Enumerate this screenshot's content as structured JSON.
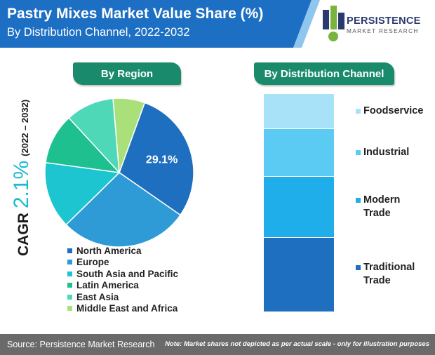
{
  "header": {
    "title": "Pastry Mixes Market Value Share (%)",
    "subtitle": "By Distribution Channel, 2022-2032"
  },
  "logo": {
    "name": "PERSISTENCE",
    "tagline": "MARKET RESEARCH"
  },
  "cagr": {
    "label": "CAGR",
    "value": "2.1%",
    "period": "(2022 – 2032)"
  },
  "region_chart": {
    "heading": "By Region"
  },
  "channel_chart": {
    "heading": "By Distribution Channel"
  },
  "chart_data": [
    {
      "type": "pie",
      "title": "By Region",
      "labels": [
        "North America",
        "Europe",
        "South Asia and Pacific",
        "Latin America",
        "East Asia",
        "Middle East and Africa"
      ],
      "values": [
        29.1,
        28,
        14.5,
        11,
        10.5,
        6.9
      ],
      "data_labels": [
        "29.1%",
        "",
        "",
        "",
        "",
        ""
      ],
      "colors": [
        "#1e6fc0",
        "#2e9bd6",
        "#1cc5cf",
        "#1fc08f",
        "#4fd8b8",
        "#a9e07a"
      ],
      "legend": "bottom"
    },
    {
      "type": "bar",
      "stacked": true,
      "title": "By Distribution Channel",
      "categories": [
        "Foodservice",
        "Industrial",
        "Modern Trade",
        "Traditional Trade"
      ],
      "values": [
        16,
        22,
        28,
        34
      ],
      "colors": [
        "#a8e2f8",
        "#5ccbf3",
        "#1faee9",
        "#1e6fc0"
      ],
      "legend": "right"
    }
  ],
  "footer": {
    "source": "Source: Persistence Market Research",
    "note": "Note: Market shares not depicted as per actual scale - only for illustration purposes"
  }
}
